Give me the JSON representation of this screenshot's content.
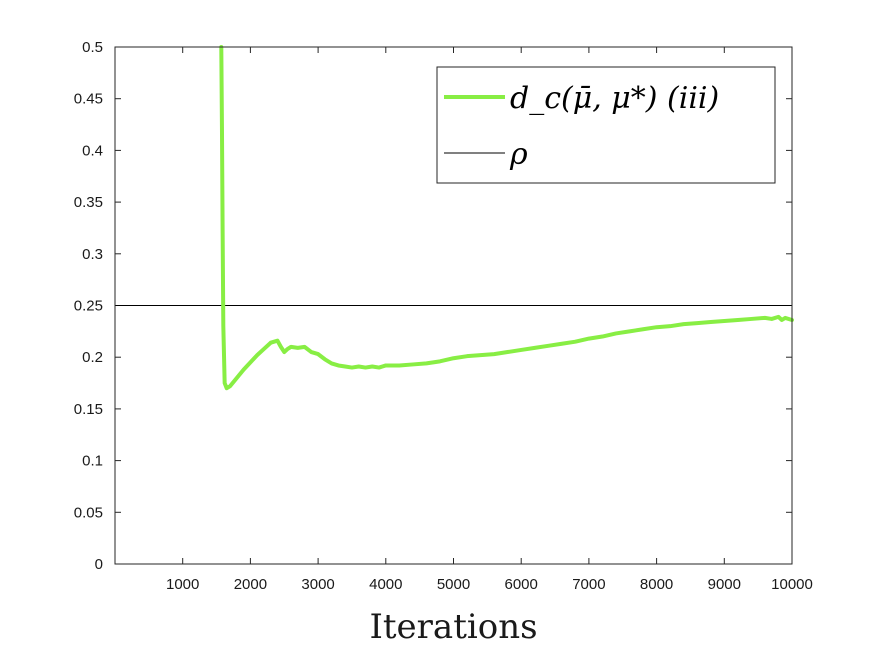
{
  "chart_data": {
    "type": "line",
    "title": "",
    "xlabel": "Iterations",
    "ylabel": "",
    "xlim": [
      0,
      10000
    ],
    "ylim": [
      0,
      0.5
    ],
    "xticks": [
      1000,
      2000,
      3000,
      4000,
      5000,
      6000,
      7000,
      8000,
      9000,
      10000
    ],
    "xtick_labels": [
      "1000",
      "2000",
      "3000",
      "4000",
      "5000",
      "6000",
      "7000",
      "8000",
      "9000",
      "10000"
    ],
    "yticks": [
      0,
      0.05,
      0.1,
      0.15,
      0.2,
      0.25,
      0.3,
      0.35,
      0.4,
      0.45,
      0.5
    ],
    "ytick_labels": [
      "0",
      "0.05",
      "0.1",
      "0.15",
      "0.2",
      "0.25",
      "0.3",
      "0.35",
      "0.4",
      "0.45",
      "0.5"
    ],
    "grid": false,
    "legend_position": "top-right",
    "series": [
      {
        "name": "d_c(μ̄, μ*) (iii)",
        "color": "#88ee44",
        "x": [
          1570,
          1580,
          1590,
          1600,
          1620,
          1650,
          1700,
          1800,
          1900,
          2000,
          2100,
          2200,
          2300,
          2350,
          2400,
          2450,
          2500,
          2550,
          2600,
          2700,
          2800,
          2900,
          3000,
          3100,
          3200,
          3300,
          3400,
          3500,
          3600,
          3700,
          3800,
          3900,
          4000,
          4200,
          4400,
          4600,
          4800,
          5000,
          5200,
          5400,
          5600,
          5800,
          6000,
          6200,
          6400,
          6600,
          6800,
          7000,
          7200,
          7400,
          7600,
          7800,
          8000,
          8200,
          8400,
          8600,
          8800,
          9000,
          9200,
          9400,
          9600,
          9700,
          9800,
          9850,
          9900,
          10000
        ],
        "y": [
          0.5,
          0.42,
          0.32,
          0.23,
          0.175,
          0.17,
          0.172,
          0.18,
          0.188,
          0.195,
          0.202,
          0.208,
          0.214,
          0.215,
          0.216,
          0.21,
          0.205,
          0.208,
          0.21,
          0.209,
          0.21,
          0.205,
          0.203,
          0.198,
          0.194,
          0.192,
          0.191,
          0.19,
          0.191,
          0.19,
          0.191,
          0.19,
          0.192,
          0.192,
          0.193,
          0.194,
          0.196,
          0.199,
          0.201,
          0.202,
          0.203,
          0.205,
          0.207,
          0.209,
          0.211,
          0.213,
          0.215,
          0.218,
          0.22,
          0.223,
          0.225,
          0.227,
          0.229,
          0.23,
          0.232,
          0.233,
          0.234,
          0.235,
          0.236,
          0.237,
          0.238,
          0.237,
          0.239,
          0.236,
          0.238,
          0.236
        ]
      },
      {
        "name": "ρ",
        "color": "#000000",
        "x": [
          0,
          10000
        ],
        "y": [
          0.25,
          0.25
        ]
      }
    ]
  }
}
